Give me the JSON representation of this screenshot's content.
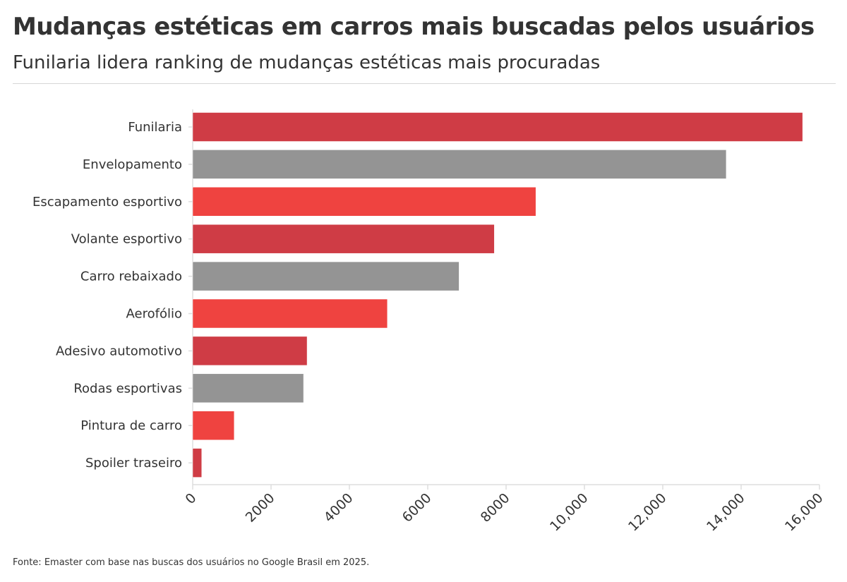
{
  "header": {
    "title": "Mudanças estéticas em carros mais buscadas pelos usuários",
    "subtitle": "Funilaria lidera ranking de mudanças estéticas mais procuradas"
  },
  "footer": {
    "source": "Fonte: Emaster com base nas buscas dos usuários no Google Brasil em 2025."
  },
  "chart_data": {
    "type": "bar",
    "orientation": "horizontal",
    "categories": [
      "Funilaria",
      "Envelopamento",
      "Escapamento esportivo",
      "Volante esportivo",
      "Carro rebaixado",
      "Aerofólio",
      "Adesivo automotivo",
      "Rodas esportivas",
      "Pintura de carro",
      "Spoiler traseiro"
    ],
    "values": [
      15570,
      13620,
      8760,
      7700,
      6800,
      4970,
      2920,
      2830,
      1060,
      230
    ],
    "colors": [
      "#cf3c45",
      "#949494",
      "#ef4340",
      "#cf3c45",
      "#949494",
      "#ef4340",
      "#cf3c45",
      "#949494",
      "#ef4340",
      "#cf3c45"
    ],
    "xlim": [
      0,
      16000
    ],
    "xticks": [
      "0",
      "2000",
      "4000",
      "6000",
      "8000",
      "10,000",
      "12,000",
      "14,000",
      "16,000"
    ],
    "xtick_values": [
      0,
      2000,
      4000,
      6000,
      8000,
      10000,
      12000,
      14000,
      16000
    ],
    "grid": false,
    "xlabel": "",
    "ylabel": ""
  }
}
